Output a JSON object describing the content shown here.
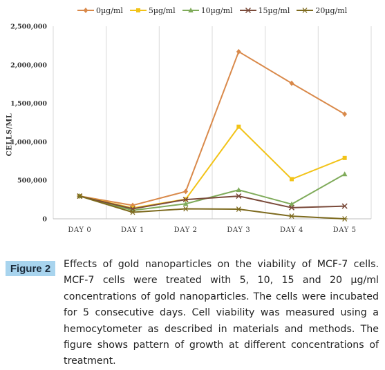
{
  "chart_data": {
    "type": "line",
    "title": "",
    "xlabel": "",
    "ylabel": "CELLS/ML",
    "categories": [
      "DAY 0",
      "DAY 1",
      "DAY 2",
      "DAY 3",
      "DAY 4",
      "DAY 5"
    ],
    "ylim": [
      0,
      2500000
    ],
    "yticks": [
      "0",
      "500,000",
      "1,000,000",
      "1,500,000",
      "2,000,000",
      "2,500,000"
    ],
    "ytick_values": [
      0,
      500000,
      1000000,
      1500000,
      2000000,
      2500000
    ],
    "grid": "vertical",
    "legend_position": "top",
    "series": [
      {
        "name": "0µg/ml",
        "color": "#d9894a",
        "marker": "diamond",
        "values": [
          295000,
          175000,
          355000,
          2170000,
          1760000,
          1360000
        ]
      },
      {
        "name": "5µg/ml",
        "color": "#f2c318",
        "marker": "square",
        "values": [
          295000,
          140000,
          255000,
          1195000,
          515000,
          790000
        ]
      },
      {
        "name": "10µg/ml",
        "color": "#7fab5a",
        "marker": "triangle",
        "values": [
          295000,
          110000,
          195000,
          375000,
          190000,
          580000
        ]
      },
      {
        "name": "15µg/ml",
        "color": "#7a4a3a",
        "marker": "x",
        "values": [
          295000,
          130000,
          250000,
          295000,
          145000,
          165000
        ]
      },
      {
        "name": "20µg/ml",
        "color": "#7d6a1e",
        "marker": "star",
        "values": [
          295000,
          85000,
          130000,
          125000,
          35000,
          0
        ]
      }
    ]
  },
  "caption": {
    "label": "Figure 2",
    "text": "Effects of gold nanoparticles on the viability of MCF-7 cells. MCF-7 cells were treated with 5, 10, 15 and 20 µg/ml concentrations of gold nanoparticles. The cells were incubated for 5 consecutive days. Cell viability was measured using a hemocytometer as described in materials and methods. The figure shows pattern of growth at different concentrations of treatment."
  }
}
